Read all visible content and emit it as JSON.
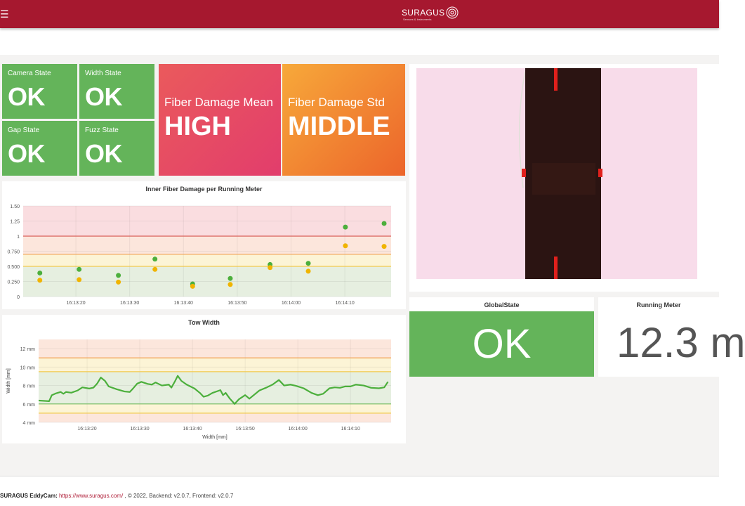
{
  "header": {
    "menu_icon": "hamburger-icon",
    "logo_text": "SURAGUS",
    "logo_subtitle": "Sensors & Instruments",
    "brand_color": "#a6182f"
  },
  "states": {
    "camera": {
      "label": "Camera State",
      "value": "OK"
    },
    "width": {
      "label": "Width State",
      "value": "OK"
    },
    "gap": {
      "label": "Gap State",
      "value": "OK"
    },
    "fuzz": {
      "label": "Fuzz State",
      "value": "OK"
    },
    "fiber_mean": {
      "label": "Fiber Damage Mean",
      "value": "HIGH"
    },
    "fiber_std": {
      "label": "Fiber Damage Std",
      "value": "MIDDLE"
    }
  },
  "global_state": {
    "label": "GlobalState",
    "value": "OK"
  },
  "running_meter": {
    "label": "Running Meter",
    "value": "12.3 m"
  },
  "chart_data": [
    {
      "type": "scatter",
      "title": "Inner Fiber Damage per Running Meter",
      "xlim": [
        "16:13:10.2",
        "16:14:18.6"
      ],
      "ylim": [
        0,
        1.5
      ],
      "xticks": [
        "16:13:20",
        "16:13:30",
        "16:13:40",
        "16:13:50",
        "16:14:00",
        "16:14:10"
      ],
      "yticks": [
        {
          "v": 0,
          "label": "0"
        },
        {
          "v": 0.25,
          "label": "0.250"
        },
        {
          "v": 0.5,
          "label": "0.500"
        },
        {
          "v": 0.75,
          "label": "0.750"
        },
        {
          "v": 1,
          "label": "1"
        },
        {
          "v": 1.25,
          "label": "1.25"
        },
        {
          "v": 1.5,
          "label": "1.50"
        }
      ],
      "thresholds": [
        {
          "v": 0.5,
          "color": "#f2c94c"
        },
        {
          "v": 0.7,
          "color": "#f0a050"
        },
        {
          "v": 1,
          "color": "#d9605a"
        }
      ],
      "bands": [
        {
          "from": 0,
          "to": 0.5,
          "color": "#e6efe0"
        },
        {
          "from": 0.5,
          "to": 0.7,
          "color": "#fcf4d6"
        },
        {
          "from": 0.7,
          "to": 1,
          "color": "#fce6dc"
        },
        {
          "from": 1,
          "to": 1.5,
          "color": "#fadde0"
        }
      ],
      "x": [
        "16:13:13.3",
        "16:13:20.6",
        "16:13:27.9",
        "16:13:34.7",
        "16:13:41.7",
        "16:13:48.7",
        "16:13:56.1",
        "16:14:03.2",
        "16:14:10.1",
        "16:14:17.3"
      ],
      "series": [
        {
          "color": "#4caf3c",
          "values": [
            0.39,
            0.45,
            0.35,
            0.62,
            0.21,
            0.3,
            0.53,
            0.55,
            1.15,
            1.21
          ]
        },
        {
          "color": "#f0b400",
          "values": [
            0.27,
            0.28,
            0.24,
            0.45,
            0.17,
            0.2,
            0.48,
            0.42,
            0.84,
            0.83
          ]
        }
      ]
    },
    {
      "type": "line",
      "title": "Tow Width",
      "ylabel": "Width [mm]",
      "xlabel": "Width [mm]",
      "xlim": [
        "16:13:10.8",
        "16:14:17.7"
      ],
      "ylim": [
        4,
        13
      ],
      "xticks": [
        "16:13:20",
        "16:13:30",
        "16:13:40",
        "16:13:50",
        "16:14:00",
        "16:14:10"
      ],
      "yticks": [
        {
          "v": 4,
          "label": "4 mm"
        },
        {
          "v": 6,
          "label": "6 mm"
        },
        {
          "v": 8,
          "label": "8 mm"
        },
        {
          "v": 10,
          "label": "10 mm"
        },
        {
          "v": 12,
          "label": "12 mm"
        }
      ],
      "thresholds": [
        {
          "v": 5,
          "color": "#f2c94c"
        },
        {
          "v": 6,
          "color": "#7cbf6a"
        },
        {
          "v": 9.5,
          "color": "#f2c94c"
        },
        {
          "v": 11,
          "color": "#f0a050"
        }
      ],
      "bands": [
        {
          "from": 4,
          "to": 5,
          "color": "#fce6dc"
        },
        {
          "from": 5,
          "to": 6,
          "color": "#fcf4d6"
        },
        {
          "from": 6,
          "to": 9.5,
          "color": "#e6efe0"
        },
        {
          "from": 9.5,
          "to": 11,
          "color": "#fcf4d6"
        },
        {
          "from": 11,
          "to": 13,
          "color": "#fce6dc"
        }
      ],
      "series": [
        {
          "color": "#4caf3c",
          "x": [
            "16:13:10.8",
            "16:13:12.8",
            "16:13:13.3",
            "16:13:14.0",
            "16:13:15.0",
            "16:13:15.5",
            "16:13:16.0",
            "16:13:17.0",
            "16:13:18.2",
            "16:13:19.1",
            "16:13:20.4",
            "16:13:21.2",
            "16:13:21.9",
            "16:13:22.6",
            "16:13:23.4",
            "16:13:24.1",
            "16:13:25.6",
            "16:13:27.1",
            "16:13:28.1",
            "16:13:28.6",
            "16:13:29.5",
            "16:13:30.3",
            "16:13:31.5",
            "16:13:32.3",
            "16:13:33.0",
            "16:13:34.2",
            "16:13:35.5",
            "16:13:36.0",
            "16:13:36.7",
            "16:13:37.2",
            "16:13:37.9",
            "16:13:38.9",
            "16:13:40.4",
            "16:13:41.4",
            "16:13:42.1",
            "16:13:42.9",
            "16:13:43.8",
            "16:13:45.3",
            "16:13:45.8",
            "16:13:46.3",
            "16:13:47.1",
            "16:13:48.0",
            "16:13:48.8",
            "16:13:50.0",
            "16:13:50.8",
            "16:13:52.7",
            "16:13:54.0",
            "16:13:55.2",
            "16:13:56.4",
            "16:13:57.4",
            "16:13:58.6",
            "16:13:59.6",
            "16:14:01.1",
            "16:14:02.6",
            "16:14:03.8",
            "16:14:04.8",
            "16:14:06.0",
            "16:14:07.0",
            "16:14:08.0",
            "16:14:09.0",
            "16:14:10.0",
            "16:14:11.0",
            "16:14:12.5",
            "16:14:13.9",
            "16:14:15.4",
            "16:14:16.4",
            "16:14:17.1"
          ],
          "values": [
            6.37,
            6.3,
            6.95,
            7.13,
            7.3,
            7.1,
            7.3,
            7.22,
            7.46,
            7.8,
            7.67,
            7.77,
            8.2,
            8.87,
            8.5,
            7.9,
            7.6,
            7.35,
            7.3,
            7.6,
            8.2,
            8.4,
            8.17,
            8.1,
            8.33,
            8.0,
            8.1,
            7.77,
            8.48,
            9.05,
            8.5,
            8.1,
            7.67,
            7.2,
            6.78,
            6.9,
            7.2,
            7.5,
            6.96,
            7.2,
            6.57,
            6.0,
            6.5,
            6.96,
            6.57,
            7.46,
            7.77,
            8.1,
            8.6,
            8.0,
            8.1,
            7.97,
            7.7,
            7.2,
            6.95,
            7.1,
            7.7,
            7.8,
            7.75,
            7.9,
            7.9,
            8.1,
            8.0,
            7.75,
            7.7,
            7.8,
            8.4
          ]
        }
      ]
    }
  ],
  "footer": {
    "brand": "SURAGUS EddyCam:",
    "link": "https://www.suragus.com/",
    "rest": " , © 2022, Backend: v2.0.7, Frontend: v2.0.7"
  }
}
